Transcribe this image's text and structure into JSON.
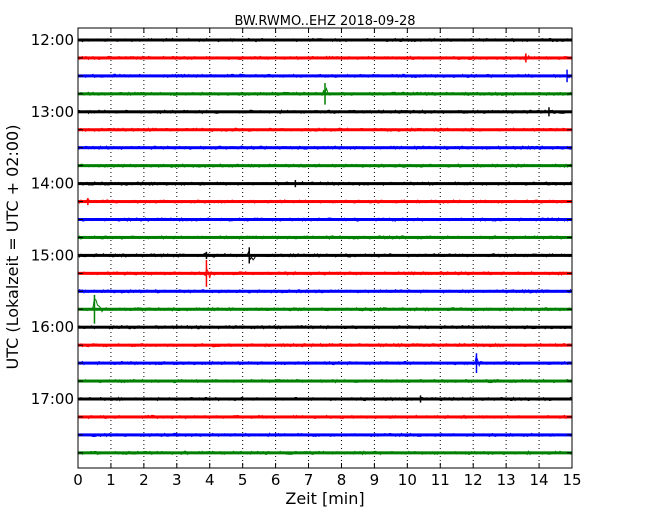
{
  "chart_data": {
    "type": "line",
    "title": "BW.RWMO..EHZ 2018-09-28",
    "xlabel": "Zeit  [min]",
    "ylabel": "UTC (Lokalzeit = UTC + 02:00)",
    "xlim": [
      0,
      15
    ],
    "x_ticks": [
      "0",
      "1",
      "2",
      "3",
      "4",
      "5",
      "6",
      "7",
      "8",
      "9",
      "10",
      "11",
      "12",
      "13",
      "14",
      "15"
    ],
    "y_ticks": [
      "12:00",
      "13:00",
      "14:00",
      "15:00",
      "16:00",
      "17:00"
    ],
    "grid": "vertical dotted",
    "colors": [
      "#000000",
      "#ff0000",
      "#0000ff",
      "#008000"
    ],
    "traces": [
      {
        "start": "12:00",
        "color": "#000000",
        "events": []
      },
      {
        "start": "12:15",
        "color": "#ff0000",
        "events": [
          {
            "min": 13.6,
            "amp": 0.25
          }
        ]
      },
      {
        "start": "12:30",
        "color": "#0000ff",
        "events": [
          {
            "min": 14.85,
            "amp": 0.35
          }
        ]
      },
      {
        "start": "12:45",
        "color": "#008000",
        "events": [
          {
            "min": 7.5,
            "amp": 0.6
          }
        ]
      },
      {
        "start": "13:00",
        "color": "#000000",
        "events": [
          {
            "min": 14.3,
            "amp": 0.25
          }
        ]
      },
      {
        "start": "13:15",
        "color": "#ff0000",
        "events": []
      },
      {
        "start": "13:30",
        "color": "#0000ff",
        "events": []
      },
      {
        "start": "13:45",
        "color": "#008000",
        "events": []
      },
      {
        "start": "14:00",
        "color": "#000000",
        "events": [
          {
            "min": 6.6,
            "amp": 0.2
          }
        ]
      },
      {
        "start": "14:15",
        "color": "#ff0000",
        "events": [
          {
            "min": 0.3,
            "amp": 0.2
          }
        ]
      },
      {
        "start": "14:30",
        "color": "#0000ff",
        "events": []
      },
      {
        "start": "14:45",
        "color": "#008000",
        "events": []
      },
      {
        "start": "15:00",
        "color": "#000000",
        "events": [
          {
            "min": 5.2,
            "amp": 0.45
          },
          {
            "min": 3.9,
            "amp": 0.2
          }
        ]
      },
      {
        "start": "15:15",
        "color": "#ff0000",
        "events": [
          {
            "min": 3.9,
            "amp": 0.75
          }
        ]
      },
      {
        "start": "15:30",
        "color": "#0000ff",
        "events": []
      },
      {
        "start": "15:45",
        "color": "#008000",
        "events": [
          {
            "min": 0.5,
            "amp": 0.8
          }
        ]
      },
      {
        "start": "16:00",
        "color": "#000000",
        "events": []
      },
      {
        "start": "16:15",
        "color": "#ff0000",
        "events": []
      },
      {
        "start": "16:30",
        "color": "#0000ff",
        "events": [
          {
            "min": 12.1,
            "amp": 0.55
          }
        ]
      },
      {
        "start": "16:45",
        "color": "#008000",
        "events": []
      },
      {
        "start": "17:00",
        "color": "#000000",
        "events": [
          {
            "min": 10.4,
            "amp": 0.2
          }
        ]
      },
      {
        "start": "17:15",
        "color": "#ff0000",
        "events": []
      },
      {
        "start": "17:30",
        "color": "#0000ff",
        "events": []
      },
      {
        "start": "17:45",
        "color": "#008000",
        "events": []
      }
    ]
  }
}
